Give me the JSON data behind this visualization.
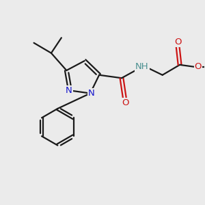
{
  "bg_color": "#ebebeb",
  "bond_color": "#1a1a1a",
  "N_color": "#1414cc",
  "O_color": "#cc1414",
  "NH_color": "#4a9090",
  "figsize": [
    3.0,
    3.0
  ],
  "dpi": 100,
  "xlim": [
    0,
    10
  ],
  "ylim": [
    0,
    10
  ],
  "lw": 1.6,
  "fs": 9.5
}
